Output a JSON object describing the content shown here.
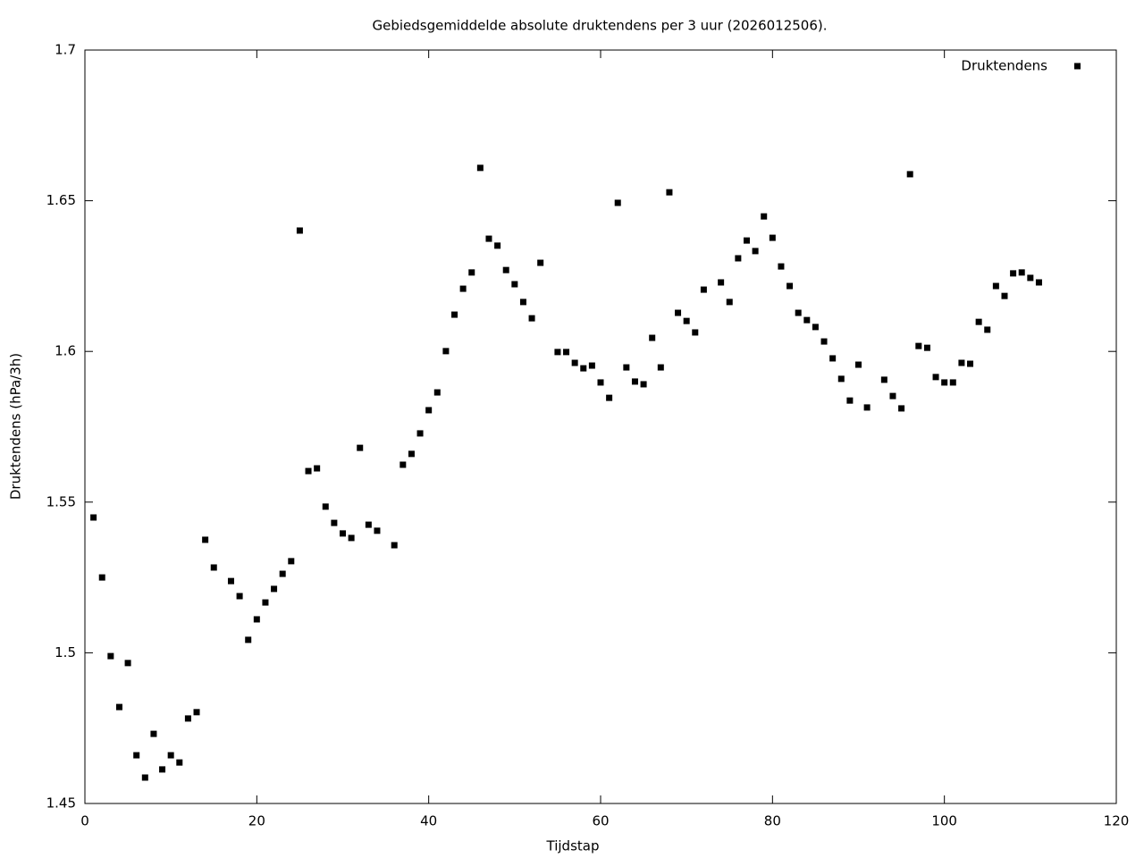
{
  "chart_data": {
    "type": "scatter",
    "title": "Gebiedsgemiddelde absolute druktendens per 3 uur (2026012506).",
    "x_label": "Tijdstap",
    "y_label": "Druktendens (hPa/3h)",
    "xlim": [
      0,
      120
    ],
    "xticks": [
      0,
      20,
      40,
      60,
      80,
      100,
      120
    ],
    "ylim": [
      1.45,
      1.7
    ],
    "yticks": [
      1.45,
      1.5,
      1.55,
      1.6,
      1.65,
      1.7
    ],
    "grid": false,
    "legend_position": "upper-right",
    "series": [
      {
        "name": "Druktendens",
        "color": "#000000",
        "x": [
          1,
          2,
          3,
          4,
          5,
          6,
          7,
          8,
          9,
          10,
          11,
          12,
          13,
          14,
          15,
          17,
          18,
          19,
          20,
          21,
          22,
          23,
          24,
          25,
          26,
          27,
          28,
          29,
          30,
          31,
          32,
          33,
          34,
          36,
          37,
          38,
          39,
          40,
          41,
          42,
          43,
          44,
          45,
          46,
          47,
          48,
          49,
          50,
          51,
          52,
          53,
          55,
          56,
          57,
          58,
          59,
          60,
          61,
          62,
          63,
          64,
          65,
          66,
          67,
          68,
          69,
          70,
          71,
          72,
          74,
          75,
          76,
          77,
          78,
          79,
          80,
          81,
          82,
          83,
          84,
          85,
          86,
          87,
          88,
          89,
          90,
          91,
          93,
          94,
          95,
          96,
          97,
          98,
          99,
          100,
          101,
          102,
          103,
          104,
          105,
          106,
          107,
          108,
          109,
          110,
          111
        ],
        "values": [
          1.5449,
          1.525,
          1.4989,
          1.482,
          1.4966,
          1.466,
          1.4586,
          1.4731,
          1.4613,
          1.466,
          1.4636,
          1.4782,
          1.4803,
          1.5375,
          1.5283,
          1.5238,
          1.5188,
          1.5043,
          1.5111,
          1.5167,
          1.5212,
          1.5262,
          1.5304,
          1.6401,
          1.5603,
          1.5612,
          1.5485,
          1.5431,
          1.5396,
          1.5381,
          1.568,
          1.5425,
          1.5405,
          1.5357,
          1.5624,
          1.566,
          1.5728,
          1.5805,
          1.5864,
          1.6001,
          1.6122,
          1.6208,
          1.6262,
          1.6609,
          1.6374,
          1.6351,
          1.627,
          1.6223,
          1.6164,
          1.611,
          1.6294,
          1.5998,
          1.5998,
          1.5962,
          1.5944,
          1.5953,
          1.5897,
          1.5846,
          1.6493,
          1.5947,
          1.59,
          1.5891,
          1.6045,
          1.5947,
          1.6528,
          1.6128,
          1.6101,
          1.6063,
          1.6205,
          1.6229,
          1.6164,
          1.6309,
          1.6368,
          1.6333,
          1.6448,
          1.6377,
          1.6282,
          1.6217,
          1.6128,
          1.6104,
          1.6081,
          1.6033,
          1.5977,
          1.5909,
          1.5837,
          1.5956,
          1.5814,
          1.5906,
          1.5852,
          1.5811,
          1.6588,
          1.6018,
          1.6012,
          1.5915,
          1.5897,
          1.5897,
          1.5962,
          1.5959,
          1.6098,
          1.6072,
          1.6217,
          1.6184,
          1.6259,
          1.6262,
          1.6244,
          1.6229
        ]
      }
    ]
  }
}
